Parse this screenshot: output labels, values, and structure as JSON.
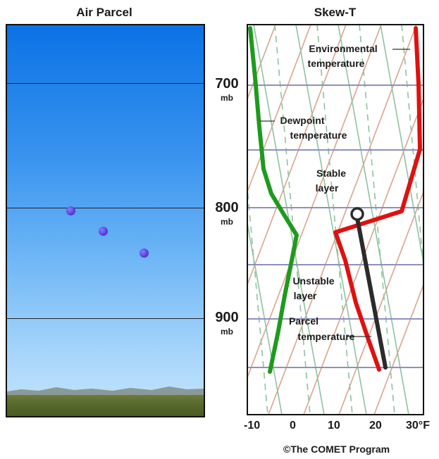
{
  "panels": {
    "air_parcel_title": "Air Parcel",
    "skewt_title": "Skew-T"
  },
  "pressure_levels": [
    {
      "value": "700",
      "unit": "mb"
    },
    {
      "value": "800",
      "unit": "mb"
    },
    {
      "value": "900",
      "unit": "mb"
    }
  ],
  "x_axis_ticks": [
    "-10",
    "0",
    "10",
    "20",
    "30°F"
  ],
  "annotations": {
    "environmental": [
      "Environmental",
      "temperature"
    ],
    "dewpoint": [
      "Dewpoint",
      "temperature"
    ],
    "stable": [
      "Stable",
      "layer"
    ],
    "unstable": [
      "Unstable",
      "layer"
    ],
    "parcel": [
      "Parcel",
      "temperature"
    ]
  },
  "copyright": "©The COMET Program",
  "colors": {
    "environmental_line": "#e01010",
    "dewpoint_line": "#1e9a1e",
    "parcel_line": "#2b2b2b",
    "isobar": "#8f8fbf",
    "isotherm": "#d9a58f",
    "dry_adiabat": "#8fc2a0"
  }
}
